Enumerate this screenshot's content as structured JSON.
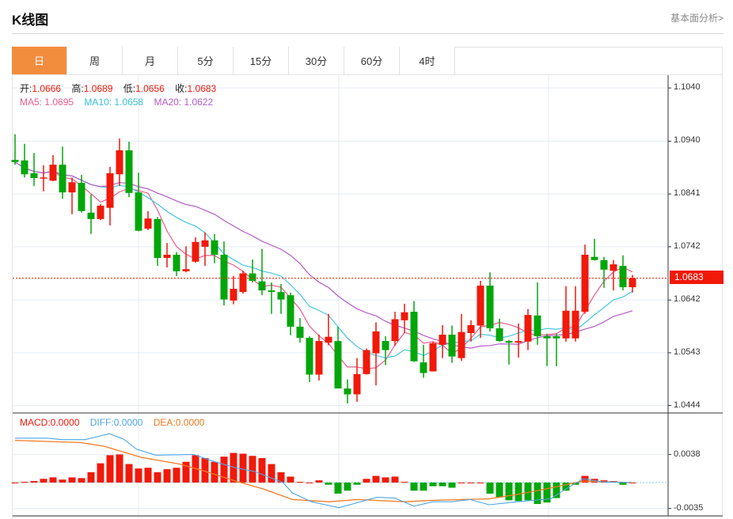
{
  "header": {
    "title": "K线图",
    "more_link": "基本面分析>"
  },
  "tabs": [
    {
      "label": "日",
      "active": true
    },
    {
      "label": "周"
    },
    {
      "label": "月"
    },
    {
      "label": "5分"
    },
    {
      "label": "15分"
    },
    {
      "label": "30分"
    },
    {
      "label": "60分"
    },
    {
      "label": "4时"
    }
  ],
  "ohlc_legend": {
    "open_label": "开:",
    "open": "1.0666",
    "high_label": "高:",
    "high": "1.0689",
    "low_label": "低:",
    "low": "1.0656",
    "close_label": "收:",
    "close": "1.0683"
  },
  "ma_legend": {
    "ma5": "MA5: 1.0695",
    "ma10": "MA10: 1.0658",
    "ma20": "MA20: 1.0622"
  },
  "macd_legend": {
    "macd": "MACD:0.0000",
    "diff": "DIFF:0.0000",
    "dea": "DEA:0.0000"
  },
  "current_price": "1.0683",
  "colors": {
    "up": "#f0190a",
    "down": "#03a60a",
    "ma5": "#ec5a8c",
    "ma10": "#45c8de",
    "ma20": "#b35ac7",
    "diff": "#4ea6e8",
    "dea": "#f07a22",
    "tab_active": "#f38d3e"
  },
  "chart_data": [
    {
      "type": "candlestick",
      "title": "K线图 日",
      "y_ticks": [
        "1.1040",
        "1.0940",
        "1.0841",
        "1.0742",
        "1.0642",
        "1.0543",
        "1.0444"
      ],
      "ylim": [
        1.043,
        1.1064
      ],
      "grid": true,
      "ohlc": [
        [
          1.0905,
          1.0953,
          1.0896,
          1.0901
        ],
        [
          1.0904,
          1.0935,
          1.0872,
          1.0878
        ],
        [
          1.088,
          1.0918,
          1.0856,
          1.0871
        ],
        [
          1.0871,
          1.0895,
          1.0846,
          1.0872
        ],
        [
          1.0866,
          1.0914,
          1.0865,
          1.0896
        ],
        [
          1.0896,
          1.093,
          1.0832,
          1.0844
        ],
        [
          1.0844,
          1.0872,
          1.0803,
          1.0863
        ],
        [
          1.0862,
          1.0877,
          1.0806,
          1.0809
        ],
        [
          1.0806,
          1.084,
          1.0766,
          1.0794
        ],
        [
          1.0794,
          1.0822,
          1.0792,
          1.0819
        ],
        [
          1.0815,
          1.0892,
          1.0782,
          1.088
        ],
        [
          1.0878,
          1.0945,
          1.0856,
          1.0923
        ],
        [
          1.0923,
          1.0939,
          1.0835,
          1.0843
        ],
        [
          1.0844,
          1.0881,
          1.0771,
          1.0772
        ],
        [
          1.0776,
          1.0809,
          1.0773,
          1.0795
        ],
        [
          1.0794,
          1.0798,
          1.0706,
          1.0721
        ],
        [
          1.0721,
          1.0749,
          1.0703,
          1.0727
        ],
        [
          1.0727,
          1.0732,
          1.0687,
          1.0696
        ],
        [
          1.0696,
          1.0743,
          1.0694,
          1.07
        ],
        [
          1.0714,
          1.076,
          1.0712,
          1.0751
        ],
        [
          1.0742,
          1.0769,
          1.0706,
          1.0754
        ],
        [
          1.0754,
          1.0766,
          1.0711,
          1.0727
        ],
        [
          1.0727,
          1.0752,
          1.0632,
          1.0643
        ],
        [
          1.0641,
          1.0687,
          1.0634,
          1.0663
        ],
        [
          1.0657,
          1.0697,
          1.0654,
          1.0692
        ],
        [
          1.0692,
          1.0718,
          1.0675,
          1.0678
        ],
        [
          1.0677,
          1.0738,
          1.0651,
          1.066
        ],
        [
          1.066,
          1.0675,
          1.0616,
          1.0657
        ],
        [
          1.0657,
          1.0672,
          1.0616,
          1.0643
        ],
        [
          1.0651,
          1.0656,
          1.0576,
          1.0592
        ],
        [
          1.0592,
          1.0608,
          1.0562,
          1.0571
        ],
        [
          1.0571,
          1.0574,
          1.0488,
          1.0502
        ],
        [
          1.0502,
          1.0577,
          1.0491,
          1.0565
        ],
        [
          1.0562,
          1.0616,
          1.0557,
          1.0573
        ],
        [
          1.0565,
          1.0592,
          1.0476,
          1.0476
        ],
        [
          1.0476,
          1.0493,
          1.0448,
          1.0465
        ],
        [
          1.0465,
          1.0533,
          1.0451,
          1.0503
        ],
        [
          1.0503,
          1.0551,
          1.0502,
          1.0548
        ],
        [
          1.0542,
          1.06,
          1.0482,
          1.0583
        ],
        [
          1.0565,
          1.0574,
          1.052,
          1.0548
        ],
        [
          1.0565,
          1.062,
          1.0556,
          1.0606
        ],
        [
          1.0604,
          1.0635,
          1.058,
          1.0619
        ],
        [
          1.062,
          1.064,
          1.0526,
          1.0527
        ],
        [
          1.0525,
          1.0558,
          1.0496,
          1.0505
        ],
        [
          1.0508,
          1.0564,
          1.0508,
          1.0561
        ],
        [
          1.0558,
          1.0595,
          1.0533,
          1.0577
        ],
        [
          1.0577,
          1.0594,
          1.0524,
          1.0536
        ],
        [
          1.0533,
          1.0616,
          1.0528,
          1.0582
        ],
        [
          1.058,
          1.0604,
          1.0564,
          1.0595
        ],
        [
          1.0594,
          1.0678,
          1.0571,
          1.0669
        ],
        [
          1.0669,
          1.0694,
          1.0583,
          1.0589
        ],
        [
          1.0589,
          1.0607,
          1.0564,
          1.0565
        ],
        [
          1.0565,
          1.0567,
          1.0521,
          1.0562
        ],
        [
          1.0562,
          1.0598,
          1.0534,
          1.0565
        ],
        [
          1.0564,
          1.0625,
          1.0548,
          1.0614
        ],
        [
          1.0613,
          1.0675,
          1.0558,
          1.0574
        ],
        [
          1.0574,
          1.0579,
          1.0518,
          1.057
        ],
        [
          1.0574,
          1.0579,
          1.0518,
          1.057
        ],
        [
          1.057,
          1.0668,
          1.0564,
          1.0622
        ],
        [
          1.057,
          1.0668,
          1.0564,
          1.0622
        ],
        [
          1.062,
          1.0746,
          1.0616,
          1.0727
        ],
        [
          1.0723,
          1.0757,
          1.0716,
          1.0717
        ],
        [
          1.0717,
          1.0723,
          1.0665,
          1.0699
        ],
        [
          1.0697,
          1.0717,
          1.066,
          1.0709
        ],
        [
          1.0706,
          1.0726,
          1.066,
          1.0666
        ],
        [
          1.0666,
          1.0689,
          1.0656,
          1.0683
        ]
      ],
      "ma_periods": [
        5,
        10,
        20
      ]
    },
    {
      "type": "bar",
      "title": "MACD",
      "y_ticks": [
        "0.0038",
        "-0.0035"
      ],
      "ylim": [
        -0.0045,
        0.0094
      ],
      "macd": [
        0,
        0.0001,
        0.0002,
        0.0005,
        0.0007,
        0.0004,
        0.0007,
        0.0006,
        0.0014,
        0.0026,
        0.0037,
        0.0038,
        0.0025,
        0.0019,
        0.002,
        0.0014,
        0.0018,
        0.002,
        0.0028,
        0.0037,
        0.0033,
        0.0028,
        0.0035,
        0.004,
        0.0039,
        0.0036,
        0.0033,
        0.0025,
        0.0014,
        0.0008,
        0.0001,
        0,
        0.0003,
        -0.0003,
        -0.0015,
        -0.0011,
        -0.0003,
        0.0005,
        0.0009,
        0.0007,
        0.0008,
        0.0001,
        -0.0011,
        -0.0011,
        -0.0005,
        -0.0005,
        -0.0007,
        0,
        0,
        0,
        -0.0015,
        -0.002,
        -0.0024,
        -0.0025,
        -0.0024,
        -0.0029,
        -0.0027,
        -0.0021,
        -0.0011,
        -0.0003,
        0.0009,
        0.0005,
        0.0003,
        0.0002,
        -0.0003,
        0
      ],
      "diff": [
        [
          1,
          0.006
        ],
        [
          4.4,
          0.006
        ],
        [
          5.9,
          0.0058
        ],
        [
          8.4,
          0.0058
        ],
        [
          10.9,
          0.0066
        ],
        [
          12.4,
          0.0059
        ],
        [
          13.8,
          0.0045
        ],
        [
          15.8,
          0.0037
        ],
        [
          19.8,
          0.0038
        ],
        [
          21.8,
          0.0029
        ],
        [
          24.2,
          0.002
        ],
        [
          26.2,
          0.0015
        ],
        [
          29.2,
          0.0
        ],
        [
          30.2,
          -0.0014
        ],
        [
          32.2,
          -0.0026
        ],
        [
          35.1,
          -0.0034
        ],
        [
          39.1,
          -0.002
        ],
        [
          41,
          -0.0021
        ],
        [
          43,
          -0.0032
        ],
        [
          45,
          -0.0026
        ],
        [
          47,
          -0.0026
        ],
        [
          48.9,
          -0.0023
        ],
        [
          50.9,
          -0.003
        ],
        [
          53.9,
          -0.0026
        ],
        [
          57.4,
          -0.0022
        ],
        [
          58.8,
          -0.001
        ],
        [
          60.8,
          0.0005
        ],
        [
          62.8,
          0.0001
        ],
        [
          65.8,
          0.0
        ]
      ],
      "dea": [
        [
          1,
          0.0057
        ],
        [
          7.9,
          0.0054
        ],
        [
          10.4,
          0.0049
        ],
        [
          14.3,
          0.0034
        ],
        [
          18.3,
          0.0025
        ],
        [
          20.8,
          0.0016
        ],
        [
          24.2,
          0.0002
        ],
        [
          27.2,
          -0.0009
        ],
        [
          30.2,
          -0.0023
        ],
        [
          34.1,
          -0.0026
        ],
        [
          37.1,
          -0.0023
        ],
        [
          42,
          -0.0026
        ],
        [
          45,
          -0.0024
        ],
        [
          50.9,
          -0.0022
        ],
        [
          53.9,
          -0.0016
        ],
        [
          56.8,
          -0.0009
        ],
        [
          60.8,
          0.0002
        ],
        [
          65.8,
          0.0
        ]
      ]
    }
  ]
}
